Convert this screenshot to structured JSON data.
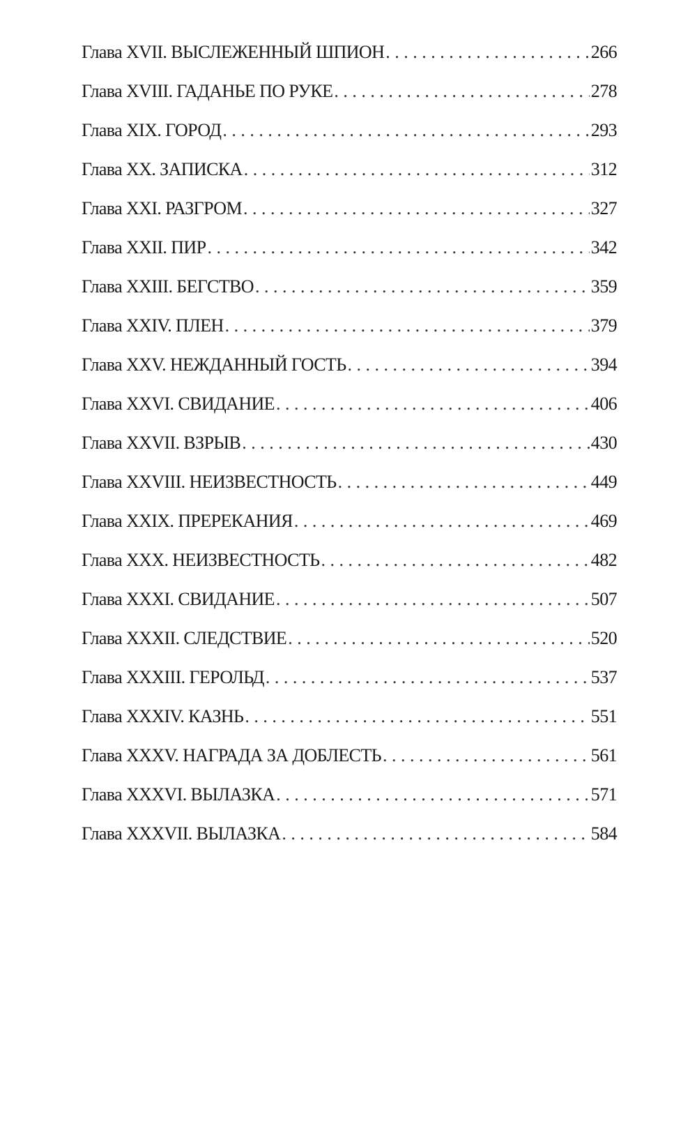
{
  "toc": [
    {
      "label": "Глава XVII. ВЫСЛЕЖЕННЫЙ ШПИОН",
      "page": "266"
    },
    {
      "label": "Глава XVIII. ГАДАНЬЕ ПО РУКЕ",
      "page": "278"
    },
    {
      "label": "Глава XIX. ГОРОД",
      "page": "293"
    },
    {
      "label": "Глава XX. ЗАПИСКА",
      "page": "312"
    },
    {
      "label": "Глава XXI. РАЗГРОМ",
      "page": "327"
    },
    {
      "label": "Глава XXII. ПИР",
      "page": "342"
    },
    {
      "label": "Глава XXIII. БЕГСТВО",
      "page": "359"
    },
    {
      "label": "Глава XXIV. ПЛЕН",
      "page": "379"
    },
    {
      "label": "Глава XXV. НЕЖДАННЫЙ ГОСТЬ",
      "page": "394"
    },
    {
      "label": "Глава XXVI. СВИДАНИЕ",
      "page": "406"
    },
    {
      "label": "Глава XXVII. ВЗРЫВ",
      "page": "430"
    },
    {
      "label": "Глава XXVIII. НЕИЗВЕСТНОСТЬ",
      "page": "449"
    },
    {
      "label": "Глава XXIX. ПРЕРЕКАНИЯ",
      "page": "469"
    },
    {
      "label": "Глава XXX. НЕИЗВЕСТНОСТЬ",
      "page": "482"
    },
    {
      "label": "Глава XXXI. СВИДАНИЕ",
      "page": "507"
    },
    {
      "label": "Глава XXXII. СЛЕДСТВИЕ",
      "page": "520"
    },
    {
      "label": "Глава XXXIII. ГЕРОЛЬД",
      "page": "537"
    },
    {
      "label": "Глава XXXIV. КАЗНЬ",
      "page": "551"
    },
    {
      "label": "Глава XXXV. НАГРАДА ЗА ДОБЛЕСТЬ",
      "page": "561"
    },
    {
      "label": "Глава XXXVI. ВЫЛАЗКА",
      "page": "571"
    },
    {
      "label": "Глава XXXVII. ВЫЛАЗКА",
      "page": "584"
    }
  ]
}
